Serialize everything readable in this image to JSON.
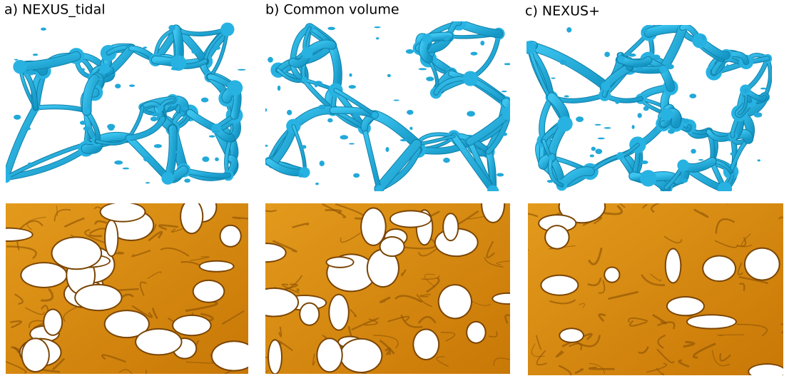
{
  "panels": [
    {
      "label": "a) NEXUS_tidal"
    },
    {
      "label": "b) Common volume"
    },
    {
      "label": "c) NEXUS+"
    }
  ]
}
